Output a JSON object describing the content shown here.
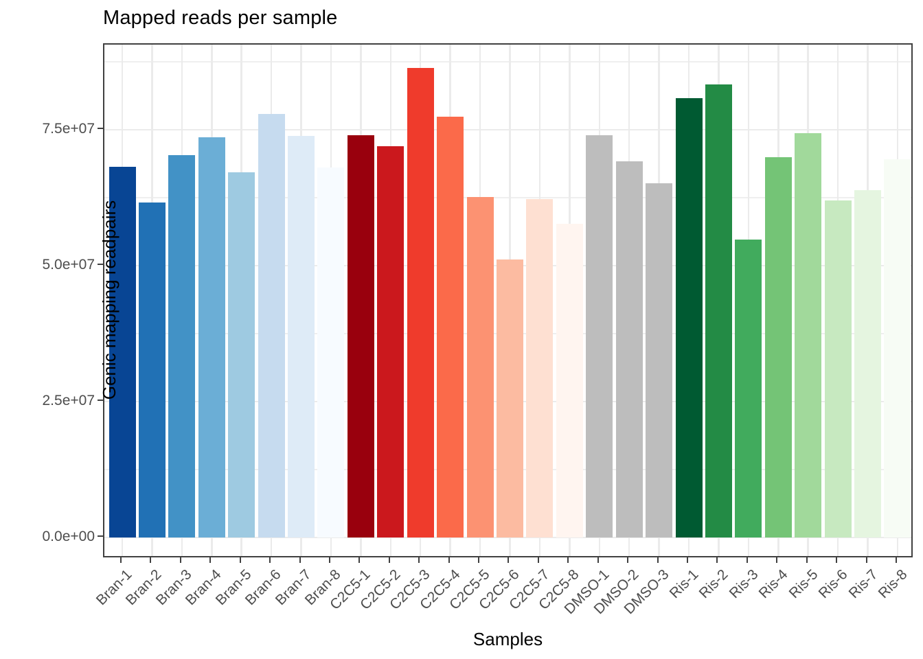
{
  "title": "Mapped reads per sample",
  "x_axis_title": "Samples",
  "y_axis_title": "Genic mapping readpairs",
  "chart_data": {
    "type": "bar",
    "title": "Mapped reads per sample",
    "xlabel": "Samples",
    "ylabel": "Genic mapping readpairs",
    "categories": [
      "Bran-1",
      "Bran-2",
      "Bran-3",
      "Bran-4",
      "Bran-5",
      "Bran-6",
      "Bran-7",
      "Bran-8",
      "C2C5-1",
      "C2C5-2",
      "C2C5-3",
      "C2C5-4",
      "C2C5-5",
      "C2C5-6",
      "C2C5-7",
      "C2C5-8",
      "DMSO-1",
      "DMSO-2",
      "DMSO-3",
      "Ris-1",
      "Ris-2",
      "Ris-3",
      "Ris-4",
      "Ris-5",
      "Ris-6",
      "Ris-7",
      "Ris-8"
    ],
    "values": [
      68200000,
      61600000,
      70300000,
      73600000,
      67200000,
      77900000,
      73900000,
      68100000,
      74000000,
      72000000,
      86400000,
      77400000,
      62600000,
      51100000,
      62200000,
      57700000,
      74000000,
      69200000,
      65100000,
      80800000,
      83300000,
      54800000,
      69900000,
      74400000,
      62000000,
      63900000,
      69600000
    ],
    "bar_colors": [
      "#084594",
      "#2171B5",
      "#4292C6",
      "#6BAED6",
      "#9ECAE1",
      "#C6DBEF",
      "#DEEBF7",
      "#F7FBFF",
      "#99000D",
      "#CB181D",
      "#EF3B2C",
      "#FB6A4A",
      "#FC9272",
      "#FCBBA1",
      "#FEE0D2",
      "#FFF5F0",
      "#BDBDBD",
      "#BDBDBD",
      "#BDBDBD",
      "#005A32",
      "#238B45",
      "#41AB5D",
      "#74C476",
      "#A1D99B",
      "#C7E9C0",
      "#E5F5E0",
      "#F7FCF5"
    ],
    "groups": [
      {
        "name": "Bran",
        "palette": "Blues (dark to light)"
      },
      {
        "name": "C2C5",
        "palette": "Reds (dark to light)"
      },
      {
        "name": "DMSO",
        "palette": "Grey"
      },
      {
        "name": "Ris",
        "palette": "Greens (dark to light)"
      }
    ],
    "ylim": [
      0,
      90700000
    ],
    "y_ticks": [
      {
        "label": "0.0e+00",
        "value": 0
      },
      {
        "label": "2.5e+07",
        "value": 25000000
      },
      {
        "label": "5.0e+07",
        "value": 50000000
      },
      {
        "label": "7.5e+07",
        "value": 75000000
      }
    ],
    "y_minor_ticks": [
      12500000,
      37500000,
      62500000,
      87500000
    ],
    "grid": true,
    "legend_position": "none",
    "x_label_angle_deg": 45
  },
  "colors": {
    "background": "#FFFFFF",
    "panel_border": "#404040",
    "grid_major": "#EBEBEB",
    "grid_minor": "#EFEFEF",
    "axis_text": "#4D4D4D",
    "title_text": "#000000"
  }
}
